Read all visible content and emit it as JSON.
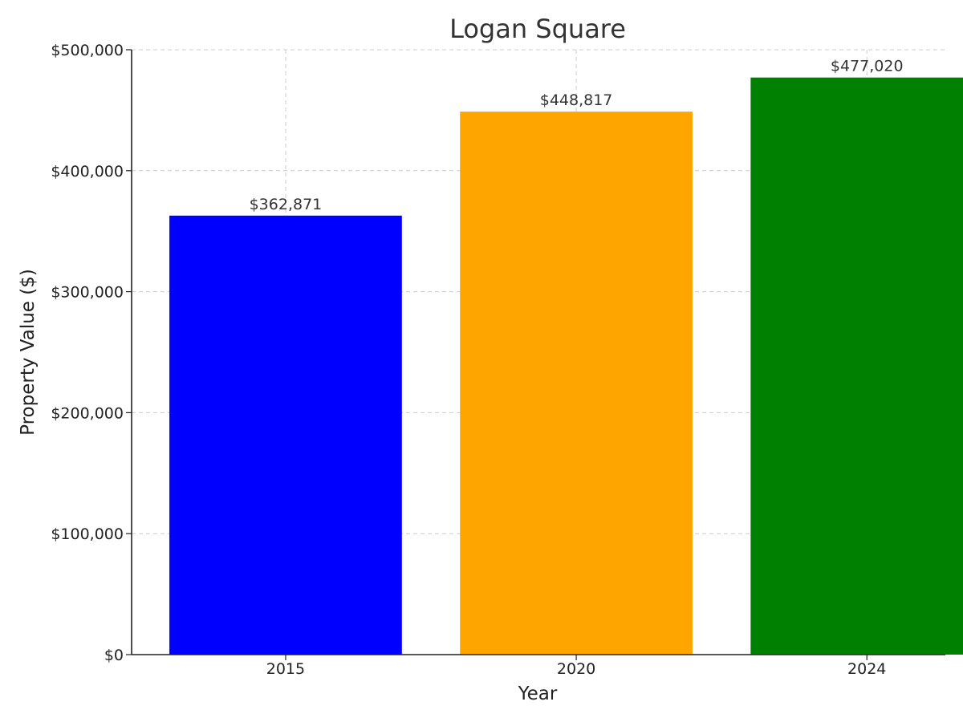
{
  "chart_data": {
    "type": "bar",
    "title": "Logan Square",
    "xlabel": "Year",
    "ylabel": "Property Value ($)",
    "categories": [
      "2015",
      "2020",
      "2024"
    ],
    "values": [
      362871,
      448817,
      477020
    ],
    "data_labels": [
      "$362,871",
      "$448,817",
      "$477,020"
    ],
    "colors": [
      "#0000ff",
      "#ffa500",
      "#008000"
    ],
    "ylim": [
      0,
      500000
    ],
    "yticks": [
      0,
      100000,
      200000,
      300000,
      400000,
      500000
    ],
    "ytick_labels": [
      "$0",
      "$100,000",
      "$200,000",
      "$300,000",
      "$400,000",
      "$500,000"
    ],
    "grid": true
  }
}
